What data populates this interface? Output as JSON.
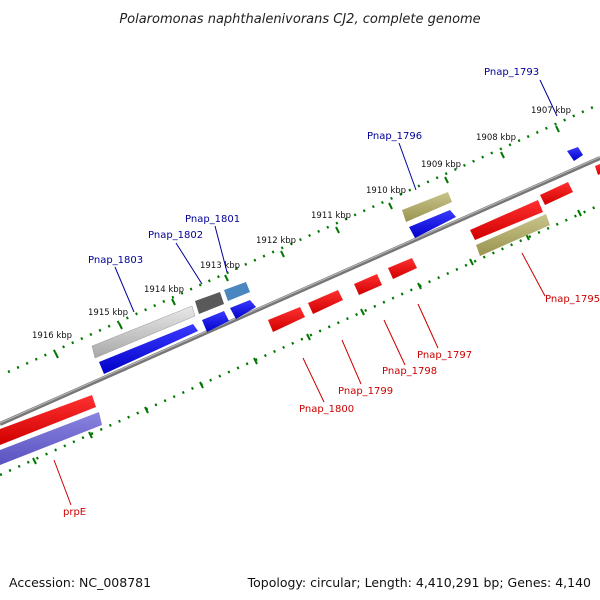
{
  "title": "Polaromonas naphthalenivorans CJ2, complete genome",
  "footer": {
    "accession": "Accession: NC_008781",
    "topology": "Topology: circular; Length: 4,410,291 bp; Genes: 4,140"
  },
  "colors": {
    "blue_label": "#000099",
    "red_label": "#cc0000",
    "forward_gene": "#0000ee",
    "reverse_gene": "#ee0000",
    "tick": "#007700",
    "backbone": "#777777"
  },
  "scale_ticks": [
    "1916 kbp",
    "1915 kbp",
    "1914 kbp",
    "1913 kbp",
    "1912 kbp",
    "1911 kbp",
    "1910 kbp",
    "1909 kbp",
    "1908 kbp",
    "1907 kbp"
  ],
  "genes_forward_labels": [
    "Pnap_1803",
    "Pnap_1802",
    "Pnap_1801",
    "Pnap_1796",
    "Pnap_1793"
  ],
  "genes_reverse_labels": [
    "prpE",
    "Pnap_1800",
    "Pnap_1799",
    "Pnap_1798",
    "Pnap_1797",
    "Pnap_1795"
  ]
}
